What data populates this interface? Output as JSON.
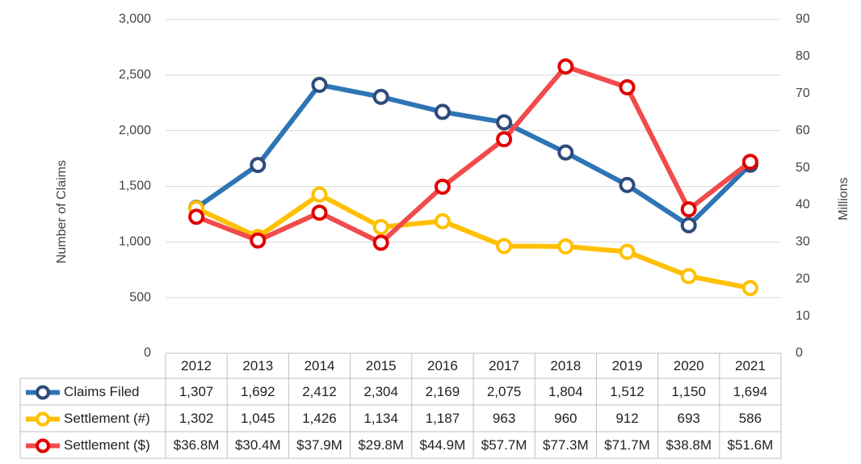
{
  "chart_data": {
    "type": "line",
    "y_label": "Number of Claims",
    "y2_label": "Millions",
    "categories": [
      "2012",
      "2013",
      "2014",
      "2015",
      "2016",
      "2017",
      "2018",
      "2019",
      "2020",
      "2021"
    ],
    "series": [
      {
        "name": "Claims Filed",
        "color": "#2e75b6",
        "marker_color": "#2f4b7c",
        "values": [
          1307,
          1692,
          2412,
          2304,
          2169,
          2075,
          1804,
          1512,
          1150,
          1694
        ],
        "value_labels": [
          "1,307",
          "1,692",
          "2,412",
          "2,304",
          "2,169",
          "2,075",
          "1,804",
          "1,512",
          "1,150",
          "1,694"
        ]
      },
      {
        "name": "Settlement (#)",
        "color": "#ffc000",
        "marker_color": "#ffc000",
        "values": [
          1302,
          1045,
          1426,
          1134,
          1187,
          963,
          960,
          912,
          693,
          586
        ],
        "value_labels": [
          "1,302",
          "1,045",
          "1,426",
          "1,134",
          "1,187",
          "963",
          "960",
          "912",
          "693",
          "586"
        ]
      },
      {
        "name": "Settlement ($)",
        "color": "#f24b4b",
        "marker_color": "#e00000",
        "axis": "y2",
        "values": [
          36.8,
          30.4,
          37.9,
          29.8,
          44.9,
          57.7,
          77.3,
          71.7,
          38.8,
          51.6
        ],
        "value_labels": [
          "$36.8M",
          "$30.4M",
          "$37.9M",
          "$29.8M",
          "$44.9M",
          "$57.7M",
          "$77.3M",
          "$71.7M",
          "$38.8M",
          "$51.6M"
        ]
      }
    ],
    "ylim": [
      0,
      3000
    ],
    "yticks": [
      0,
      500,
      {
        "value": 1000,
        "label": "1,000"
      },
      {
        "value": 1500,
        "label": "1,500"
      },
      {
        "value": 2000,
        "label": "2,000"
      },
      {
        "value": 2500,
        "label": "2,500"
      },
      {
        "value": 3000,
        "label": "3,000"
      }
    ],
    "y2lim": [
      0,
      90
    ],
    "y2ticks": [
      0,
      10,
      20,
      30,
      40,
      50,
      60,
      70,
      80,
      90
    ],
    "grid": true
  }
}
